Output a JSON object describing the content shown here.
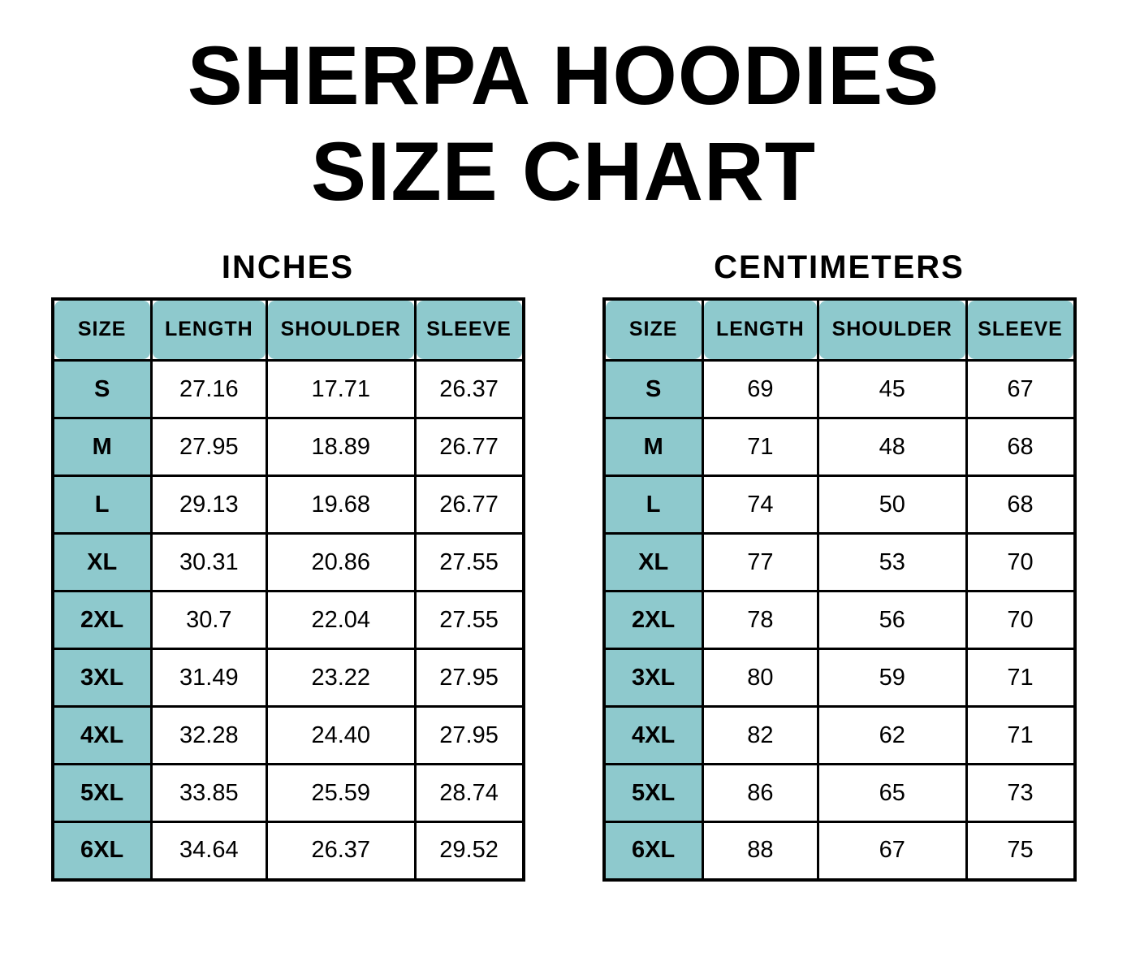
{
  "page_title": {
    "line1": "SHERPA HOODIES",
    "line2": "SIZE CHART"
  },
  "colors": {
    "header_fill": "#8ec9cd",
    "border": "#000000",
    "text": "#000000",
    "background": "#ffffff"
  },
  "chart_data": [
    {
      "type": "table",
      "title": "INCHES",
      "columns": [
        "SIZE",
        "LENGTH",
        "SHOULDER",
        "SLEEVE"
      ],
      "rows": [
        [
          "S",
          "27.16",
          "17.71",
          "26.37"
        ],
        [
          "M",
          "27.95",
          "18.89",
          "26.77"
        ],
        [
          "L",
          "29.13",
          "19.68",
          "26.77"
        ],
        [
          "XL",
          "30.31",
          "20.86",
          "27.55"
        ],
        [
          "2XL",
          "30.7",
          "22.04",
          "27.55"
        ],
        [
          "3XL",
          "31.49",
          "23.22",
          "27.95"
        ],
        [
          "4XL",
          "32.28",
          "24.40",
          "27.95"
        ],
        [
          "5XL",
          "33.85",
          "25.59",
          "28.74"
        ],
        [
          "6XL",
          "34.64",
          "26.37",
          "29.52"
        ]
      ]
    },
    {
      "type": "table",
      "title": "CENTIMETERS",
      "columns": [
        "SIZE",
        "LENGTH",
        "SHOULDER",
        "SLEEVE"
      ],
      "rows": [
        [
          "S",
          "69",
          "45",
          "67"
        ],
        [
          "M",
          "71",
          "48",
          "68"
        ],
        [
          "L",
          "74",
          "50",
          "68"
        ],
        [
          "XL",
          "77",
          "53",
          "70"
        ],
        [
          "2XL",
          "78",
          "56",
          "70"
        ],
        [
          "3XL",
          "80",
          "59",
          "71"
        ],
        [
          "4XL",
          "82",
          "62",
          "71"
        ],
        [
          "5XL",
          "86",
          "65",
          "73"
        ],
        [
          "6XL",
          "88",
          "67",
          "75"
        ]
      ]
    }
  ]
}
